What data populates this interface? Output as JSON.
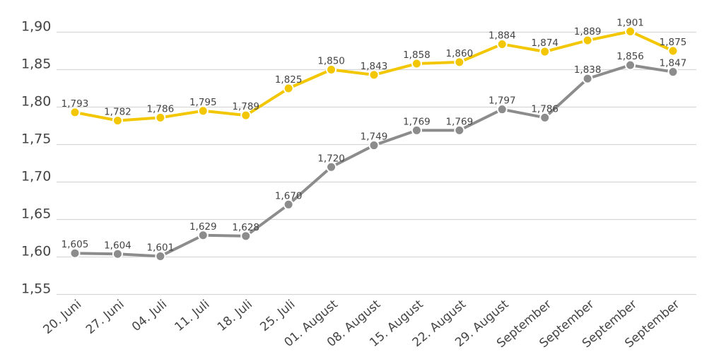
{
  "chart_data": {
    "type": "line",
    "title": "",
    "xlabel": "",
    "ylabel": "",
    "ylim": [
      1.55,
      1.9
    ],
    "yticks": [
      "1,90",
      "1,85",
      "1,80",
      "1,75",
      "1,70",
      "1,65",
      "1,60",
      "1,55"
    ],
    "yticks_values": [
      1.9,
      1.85,
      1.8,
      1.75,
      1.7,
      1.65,
      1.6,
      1.55
    ],
    "grid": true,
    "categories": [
      "20. Juni",
      "27. Juni",
      "04. Juli",
      "11. Juli",
      "18. Juli",
      "25. Juli",
      "01. August",
      "08. August",
      "15. August",
      "22. August",
      "29. August",
      "September",
      "September",
      "September",
      "September"
    ],
    "series": [
      {
        "name": "Gelb",
        "color": "#f3c700",
        "values": [
          1.793,
          1.782,
          1.786,
          1.795,
          1.789,
          1.825,
          1.85,
          1.843,
          1.858,
          1.86,
          1.884,
          1.874,
          1.889,
          1.901,
          1.875
        ],
        "labels": [
          "1,793",
          "1,782",
          "1,786",
          "1,795",
          "1,789",
          "1,825",
          "1,850",
          "1,843",
          "1,858",
          "1,860",
          "1,884",
          "1,874",
          "1,889",
          "1,901",
          "1,875"
        ]
      },
      {
        "name": "Grau",
        "color": "#8c8c8c",
        "values": [
          1.605,
          1.604,
          1.601,
          1.629,
          1.628,
          1.67,
          1.72,
          1.749,
          1.769,
          1.769,
          1.797,
          1.786,
          1.838,
          1.856,
          1.847
        ],
        "labels": [
          "1,605",
          "1,604",
          "1,601",
          "1,629",
          "1,628",
          "1,670",
          "1,720",
          "1,749",
          "1,769",
          "1,769",
          "1,797",
          "1,786",
          "1,838",
          "1,856",
          "1,847"
        ]
      }
    ]
  }
}
